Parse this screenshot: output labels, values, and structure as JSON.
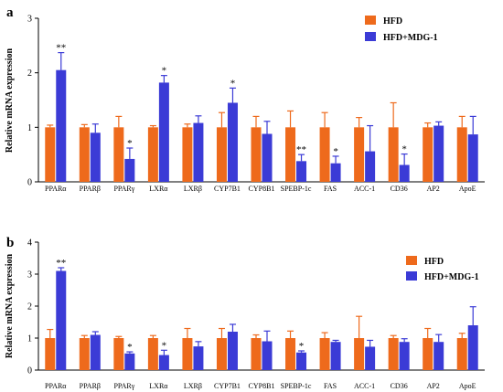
{
  "colors": {
    "hfd": "#ee6a1c",
    "mdg": "#3b3bd6",
    "axis": "#000000"
  },
  "chart_data": [
    {
      "panel_label": "a",
      "type": "bar",
      "ylabel": "Relative mRNA expression",
      "ylim": [
        0,
        3
      ],
      "yticks": [
        "0",
        "1",
        "2",
        "3"
      ],
      "legend_position": "top-right",
      "categories": [
        "PPARα",
        "PPARβ",
        "PPARγ",
        "LXRα",
        "LXRβ",
        "CYP7B1",
        "CYP8B1",
        "SPEBP-1c",
        "FAS",
        "ACC-1",
        "CD36",
        "AP2",
        "ApoE"
      ],
      "series": [
        {
          "name": "HFD",
          "values": [
            1.0,
            1.0,
            1.0,
            1.0,
            1.0,
            1.0,
            1.0,
            1.0,
            1.0,
            1.0,
            1.0,
            1.0,
            1.0
          ],
          "errors": [
            0.04,
            0.05,
            0.2,
            0.03,
            0.06,
            0.27,
            0.2,
            0.3,
            0.27,
            0.18,
            0.45,
            0.08,
            0.2
          ]
        },
        {
          "name": "HFD+MDG-1",
          "values": [
            2.05,
            0.9,
            0.42,
            1.82,
            1.08,
            1.45,
            0.88,
            0.38,
            0.34,
            0.56,
            0.31,
            1.03,
            0.87
          ],
          "errors": [
            0.32,
            0.16,
            0.2,
            0.13,
            0.13,
            0.27,
            0.23,
            0.12,
            0.13,
            0.47,
            0.2,
            0.07,
            0.33
          ]
        }
      ],
      "annotations": [
        "**",
        "",
        "*",
        "*",
        "",
        "*",
        "",
        "**",
        "*",
        "",
        "*",
        "",
        ""
      ]
    },
    {
      "panel_label": "b",
      "type": "bar",
      "ylabel": "Relative mRNA expression",
      "ylim": [
        0,
        4
      ],
      "yticks": [
        "0",
        "1",
        "2",
        "3",
        "4"
      ],
      "legend_position": "top-right",
      "categories": [
        "PPARα",
        "PPARβ",
        "PPARγ",
        "LXRα",
        "LXRβ",
        "CYP7B1",
        "CYP8B1",
        "SPEBP-1c",
        "FAS",
        "ACC-1",
        "CD36",
        "AP2",
        "ApoE"
      ],
      "series": [
        {
          "name": "HFD",
          "values": [
            1.0,
            1.0,
            1.0,
            1.0,
            1.0,
            1.0,
            1.0,
            1.0,
            1.0,
            1.0,
            1.0,
            1.0,
            1.0
          ],
          "errors": [
            0.27,
            0.08,
            0.05,
            0.08,
            0.3,
            0.3,
            0.1,
            0.22,
            0.17,
            0.68,
            0.08,
            0.3,
            0.15
          ]
        },
        {
          "name": "HFD+MDG-1",
          "values": [
            3.1,
            1.1,
            0.52,
            0.47,
            0.74,
            1.2,
            0.9,
            0.55,
            0.88,
            0.73,
            0.88,
            0.88,
            1.4
          ],
          "errors": [
            0.1,
            0.1,
            0.05,
            0.15,
            0.15,
            0.23,
            0.32,
            0.05,
            0.05,
            0.2,
            0.1,
            0.23,
            0.58
          ]
        }
      ],
      "annotations": [
        "**",
        "",
        "*",
        "*",
        "",
        "",
        "",
        "*",
        "",
        "",
        "",
        "",
        ""
      ]
    }
  ]
}
